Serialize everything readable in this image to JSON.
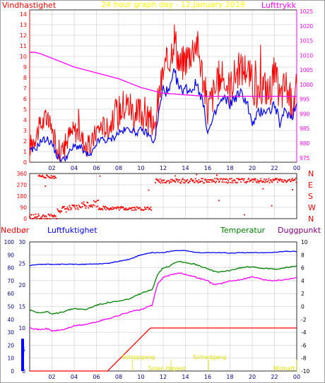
{
  "header": {
    "left_label": "Vindhastighet",
    "title": "24 hour graph day - 12.January 2019",
    "right_label": "Lufttrykk"
  },
  "colors": {
    "wind": "#ff0000",
    "wind_avg": "#0000ff",
    "pressure": "#ff00ff",
    "direction": "#ff0000",
    "rain": "#ff0000",
    "humidity": "#0000ff",
    "temperature": "#008000",
    "dewpoint": "#ff00ff",
    "axis_wind": "#ff0000",
    "axis_pressure": "#ff00ff",
    "axis_rain": "#ff0000",
    "axis_humidity": "#0000ff",
    "axis_temp": "#000000",
    "grid": "#c0c0c0",
    "sun": "#ffff00"
  },
  "chart_data": [
    {
      "type": "line",
      "title": "24 hour graph day - 12.January 2019",
      "ylabel": "Vindhastighet",
      "y2label": "Lufttrykk",
      "x_ticks": [
        "02",
        "04",
        "06",
        "08",
        "10",
        "12",
        "14",
        "16",
        "18",
        "20",
        "22",
        "00"
      ],
      "ylim": [
        0,
        14.4
      ],
      "y_ticks": [
        "0",
        "1",
        "2",
        "3",
        "4",
        "5",
        "6",
        "7",
        "8",
        "9",
        "10",
        "11",
        "12",
        "13",
        "14"
      ],
      "y2lim": [
        973.5,
        1025.5
      ],
      "y2_ticks": [
        "975",
        "980",
        "985",
        "990",
        "995",
        "1000",
        "1005",
        "1010",
        "1015",
        "1020",
        "1025"
      ],
      "series": [
        {
          "name": "Vindhastighet",
          "axis": "left",
          "style": "gust",
          "x": [
            0,
            0.5,
            1,
            1.5,
            2,
            2.5,
            3,
            3.5,
            4,
            4.5,
            5,
            5.5,
            6,
            6.5,
            7,
            7.5,
            8,
            8.5,
            9,
            9.5,
            10,
            10.5,
            11,
            11.2,
            11.5,
            12,
            12.5,
            13,
            13.5,
            14,
            14.5,
            15,
            15.5,
            16,
            16.5,
            17,
            17.5,
            18,
            18.5,
            19,
            19.5,
            20,
            20.5,
            21,
            21.5,
            22,
            22.5,
            23,
            23.5,
            24
          ],
          "y": [
            1.5,
            2.5,
            3.5,
            4.2,
            3.0,
            1.2,
            1.0,
            2.5,
            3.0,
            2.8,
            1.5,
            1.5,
            3.0,
            3.5,
            3.2,
            4.0,
            4.8,
            5.5,
            5.5,
            4.2,
            4.8,
            4.5,
            3.5,
            2.5,
            5.5,
            8.5,
            9.5,
            12.0,
            9.0,
            9.8,
            10.5,
            11.5,
            8.5,
            5.0,
            6.5,
            7.5,
            8.0,
            7.0,
            8.5,
            8.8,
            9.0,
            7.5,
            6.0,
            7.5,
            6.5,
            8.5,
            6.0,
            7.5,
            5.5,
            7.0
          ]
        },
        {
          "name": "Vindhastighet middel",
          "axis": "left",
          "style": "avg",
          "x": [
            0,
            0.5,
            1,
            1.5,
            2,
            2.5,
            3,
            3.5,
            4,
            4.5,
            5,
            5.5,
            6,
            6.5,
            7,
            7.5,
            8,
            8.5,
            9,
            9.5,
            10,
            10.5,
            11,
            11.2,
            11.5,
            12,
            12.5,
            13,
            13.5,
            14,
            14.5,
            15,
            15.5,
            16,
            16.5,
            17,
            17.5,
            18,
            18.5,
            19,
            19.5,
            20,
            20.5,
            21,
            21.5,
            22,
            22.5,
            23,
            23.5,
            24
          ],
          "y": [
            1.0,
            1.2,
            2.0,
            2.2,
            1.8,
            0.5,
            0.2,
            0.8,
            1.5,
            1.5,
            0.8,
            0.5,
            1.8,
            2.2,
            2.0,
            2.3,
            2.8,
            3.0,
            3.2,
            2.8,
            3.0,
            2.8,
            2.2,
            1.8,
            4.0,
            7.0,
            6.5,
            8.5,
            6.8,
            7.0,
            6.8,
            7.5,
            6.0,
            2.8,
            4.0,
            5.5,
            6.0,
            5.5,
            6.2,
            6.5,
            5.8,
            3.5,
            4.5,
            5.0,
            4.8,
            5.5,
            3.5,
            5.0,
            4.2,
            5.5
          ]
        },
        {
          "name": "Lufttrykk",
          "axis": "right",
          "style": "pressure",
          "x": [
            0,
            0.5,
            1,
            2,
            3,
            4,
            5,
            6,
            7,
            8,
            9,
            10,
            11,
            12,
            13,
            14,
            15,
            16,
            17,
            18,
            19,
            20,
            21,
            22,
            23,
            24
          ],
          "y": [
            1011,
            1011,
            1010.5,
            1009,
            1007.5,
            1006,
            1005,
            1004,
            1003,
            1002,
            1000.5,
            999,
            998,
            997,
            996.8,
            996.5,
            996.2,
            996,
            996,
            996,
            996,
            996,
            996,
            996,
            996,
            996
          ]
        }
      ]
    },
    {
      "type": "scatter",
      "ylabel": "Vindretning",
      "x_ticks": [
        "02",
        "04",
        "06",
        "08",
        "10",
        "12",
        "14",
        "16",
        "18",
        "20",
        "22",
        "00"
      ],
      "ylim": [
        0,
        360
      ],
      "y_ticks": [
        "0",
        "45",
        "90",
        "135",
        "180",
        "225",
        "270",
        "315",
        "360"
      ],
      "dir_ticks": [
        "0",
        "90",
        "180",
        "270",
        "360"
      ],
      "compass_labels": [
        "N",
        "W",
        "S",
        "E",
        "N"
      ],
      "series": [
        {
          "name": "Vindretning",
          "segments": [
            {
              "x": [
                0,
                2.5
              ],
              "y": [
                15,
                10
              ],
              "spread": 25
            },
            {
              "x": [
                0.8,
                2.4
              ],
              "y": [
                340,
                330
              ],
              "spread": 12
            },
            {
              "x": [
                2.5,
                4.5
              ],
              "y": [
                70,
                90
              ],
              "spread": 25
            },
            {
              "x": [
                4.5,
                6.2
              ],
              "y": [
                105,
                125
              ],
              "spread": 30
            },
            {
              "x": [
                6.2,
                11.0
              ],
              "y": [
                85,
                80
              ],
              "spread": 15
            },
            {
              "x": [
                11.3,
                24
              ],
              "y": [
                300,
                305
              ],
              "spread": 18
            }
          ]
        }
      ]
    },
    {
      "type": "line",
      "ylabel": "Nedbør",
      "y2label": "Luftfuktighet",
      "y3label": "Temperatur",
      "y4label": "Duggpunkt",
      "x_ticks": [
        "02",
        "04",
        "06",
        "08",
        "10",
        "12",
        "14",
        "16",
        "18",
        "20",
        "22",
        "00"
      ],
      "rain_lim": [
        0,
        100
      ],
      "rain_ticks": [
        "0",
        "10",
        "20",
        "30",
        "40",
        "50",
        "60",
        "70",
        "80",
        "90",
        "100"
      ],
      "humidity_lim": [
        0,
        30
      ],
      "humidity_ticks": [
        "0",
        "5",
        "10",
        "15",
        "20",
        "25",
        "30"
      ],
      "temp_lim": [
        -10,
        10
      ],
      "temp_ticks": [
        "-10",
        "-8",
        "-6",
        "-4",
        "-2",
        "0",
        "2",
        "4",
        "6",
        "8",
        "10"
      ],
      "series": [
        {
          "name": "Nedbør",
          "axis": "rain",
          "x": [
            0,
            1,
            2,
            3,
            4,
            5,
            6,
            7,
            8,
            9,
            10,
            11,
            12,
            13,
            14,
            15,
            16,
            17,
            18,
            19,
            20,
            21,
            22,
            23,
            24
          ],
          "y": [
            1,
            1,
            1,
            1,
            1,
            1,
            1,
            2,
            3,
            4,
            3,
            2,
            2,
            2,
            2,
            2,
            2,
            2,
            2,
            2,
            2,
            2,
            2,
            2,
            2
          ]
        },
        {
          "name": "Luftfuktighet",
          "axis": "humidity",
          "x": [
            0,
            1,
            2,
            3,
            4,
            5,
            6,
            7,
            8,
            9,
            10,
            11,
            12,
            13,
            14,
            15,
            16,
            17,
            18,
            19,
            20,
            21,
            22,
            23,
            24
          ],
          "y": [
            24.5,
            24.8,
            24.8,
            24.8,
            24.8,
            24.8,
            24.9,
            25,
            25.5,
            26,
            27,
            27.5,
            27.5,
            28,
            28,
            27.5,
            27.5,
            27.5,
            27.4,
            27.5,
            27.5,
            27.5,
            27.6,
            27.8,
            27.8
          ]
        },
        {
          "name": "Temperatur",
          "axis": "temp",
          "x": [
            0,
            0.5,
            1,
            1.5,
            2,
            3,
            4,
            5,
            6,
            7,
            8,
            9,
            10,
            11,
            11.5,
            12,
            12.5,
            13,
            13.5,
            14,
            15,
            16,
            16.5,
            17,
            18,
            19,
            20,
            21,
            22,
            23,
            24
          ],
          "y": [
            -0.5,
            -0.8,
            -1.0,
            -0.8,
            -1.2,
            -0.8,
            -0.3,
            -0.5,
            0.2,
            0.6,
            0.8,
            1.2,
            2.0,
            2.6,
            5.0,
            6.0,
            6.2,
            6.8,
            7.0,
            6.8,
            6.5,
            5.8,
            5.5,
            5.3,
            5.6,
            6.0,
            6.2,
            5.9,
            5.8,
            6.0,
            6.3
          ]
        },
        {
          "name": "Duggpunkt",
          "axis": "temp",
          "x": [
            0,
            0.5,
            1,
            1.5,
            2,
            3,
            4,
            5,
            6,
            7,
            8,
            9,
            10,
            11,
            11.5,
            12,
            12.5,
            13,
            13.5,
            14,
            15,
            16,
            16.5,
            17,
            18,
            19,
            20,
            21,
            22,
            23,
            24
          ],
          "y": [
            -3.2,
            -3.5,
            -3.6,
            -3.4,
            -3.8,
            -3.6,
            -3.0,
            -2.8,
            -2.4,
            -1.9,
            -1.4,
            -0.8,
            -0.5,
            0.2,
            3.5,
            4.5,
            4.8,
            5.0,
            5.2,
            5.0,
            4.5,
            4.0,
            3.4,
            3.5,
            3.9,
            4.2,
            4.6,
            4.2,
            4.0,
            4.2,
            4.5
          ]
        }
      ]
    }
  ],
  "annotations": {
    "sunrise_label": "Soloppgang",
    "solar_noon_label": "Solen Høyest",
    "sunset_label": "Solnedgang",
    "midnight_label": "Midnatt",
    "sunrise_hour": 9.25,
    "sunset_hour": 16.1
  },
  "lower_labels": {
    "rain": "Nedbør",
    "humidity": "Luftfuktighet",
    "temperature": "Temperatur",
    "dewpoint": "Duggpunkt"
  }
}
